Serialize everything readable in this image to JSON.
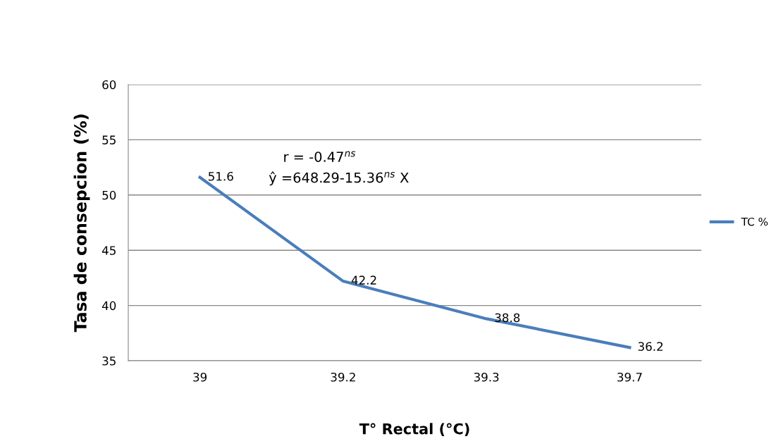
{
  "chart_data": {
    "type": "line",
    "xlabel": "T° Rectal (°C)",
    "ylabel": "Tasa de consepcion (%)",
    "categories": [
      "39",
      "39.2",
      "39.3",
      "39.7"
    ],
    "series": [
      {
        "name": "TC %",
        "color": "#4a7ebb",
        "values": [
          51.6,
          42.2,
          38.8,
          36.2
        ]
      }
    ],
    "ylim": [
      35,
      60
    ],
    "yticks": [
      35,
      40,
      45,
      50,
      55,
      60
    ],
    "grid": "y",
    "legend": "right",
    "data_labels": true,
    "marker": "none",
    "line_style": "solid",
    "annotations": [
      "r = -0.47$^{ns}$",
      "ŷ =648.29-15.36$^{ns}$ X"
    ]
  }
}
